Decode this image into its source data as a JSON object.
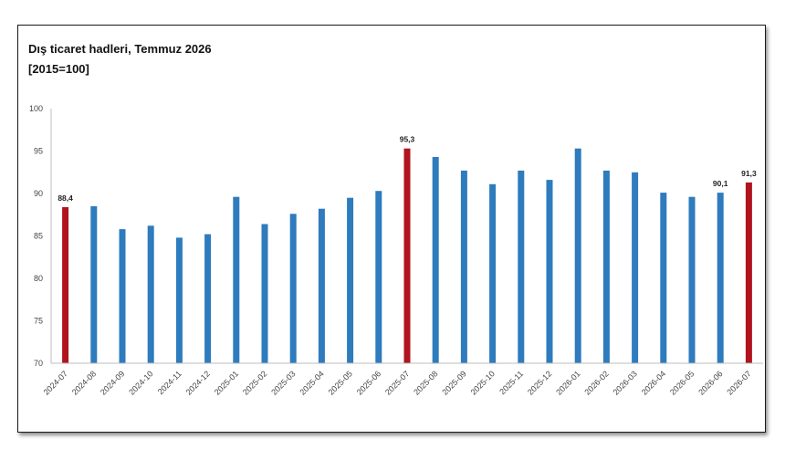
{
  "chart_data": {
    "type": "bar",
    "title": "Dış ticaret hadleri, Temmuz 2026",
    "subtitle": "[2015=100]",
    "xlabel": "",
    "ylabel": "",
    "ylim": [
      70,
      100
    ],
    "yticks": [
      "70",
      "75",
      "80",
      "85",
      "90",
      "95",
      "100"
    ],
    "grid": false,
    "categories": [
      "2024-07",
      "2024-08",
      "2024-09",
      "2024-10",
      "2024-11",
      "2024-12",
      "2025-01",
      "2025-02",
      "2025-03",
      "2025-04",
      "2025-05",
      "2025-06",
      "2025-07",
      "2025-08",
      "2025-09",
      "2025-10",
      "2025-11",
      "2025-12",
      "2026-01",
      "2026-02",
      "2026-03",
      "2026-04",
      "2026-05",
      "2026-06",
      "2026-07"
    ],
    "values": [
      88.4,
      88.5,
      85.8,
      86.2,
      84.8,
      85.2,
      89.6,
      86.4,
      87.6,
      88.2,
      89.5,
      90.3,
      95.3,
      94.3,
      92.7,
      91.1,
      92.7,
      91.6,
      95.3,
      92.7,
      92.5,
      90.1,
      89.6,
      90.1,
      91.3
    ],
    "highlight": [
      0,
      12,
      24
    ],
    "data_labels": {
      "0": "88,4",
      "12": "95,3",
      "23": "90,1",
      "24": "91,3"
    },
    "colors": {
      "bar": "#2e7bbd",
      "highlight": "#b0141e",
      "axis": "#bdbdbd"
    }
  }
}
